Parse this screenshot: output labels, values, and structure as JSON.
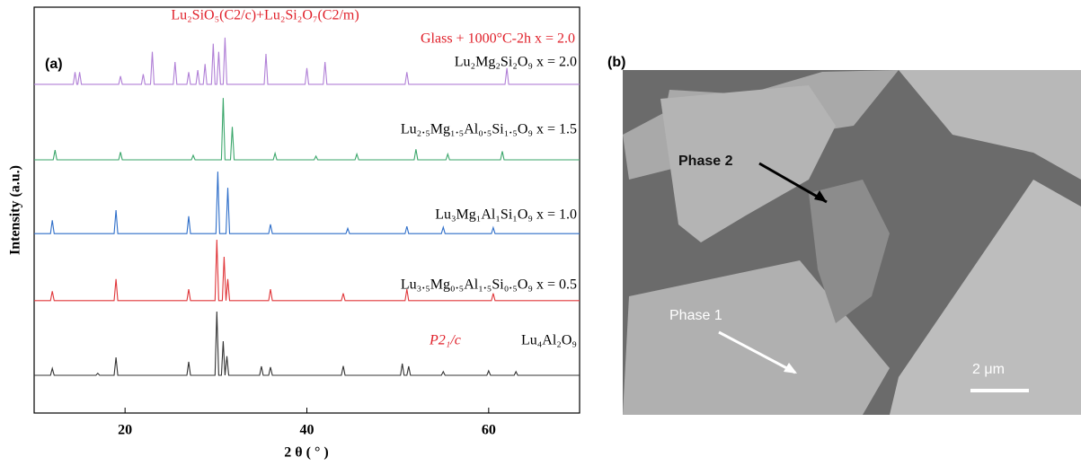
{
  "chart_data": {
    "type": "line",
    "panel_label": "(a)",
    "xlabel": "2 θ ( ° )",
    "ylabel": "Intensity (a.u.)",
    "annotations": [
      "Lu₂SiO₅(C2/c)+Lu₂Si₂O₇(C2/m)",
      "Glass + 1000°C-2h  x = 2.0",
      "P2₁/c"
    ],
    "xlim": [
      10,
      70
    ],
    "xticks": [
      20,
      40,
      60
    ],
    "ylim": [
      0,
      100
    ],
    "series": [
      {
        "name": "Lu₂Mg₂Si₂O₉  x = 2.0",
        "color": "#b07fd6",
        "x": [
          10,
          14.3,
          14.5,
          14.7,
          14.8,
          15,
          15.2,
          19.3,
          19.5,
          19.7,
          21.8,
          22,
          22.2,
          22.8,
          23,
          23.2,
          25.3,
          25.5,
          25.7,
          26.8,
          27,
          27.2,
          27.8,
          28,
          28.2,
          28.6,
          28.8,
          29.0,
          29.5,
          29.7,
          29.9,
          30.1,
          30.3,
          30.5,
          30.8,
          31,
          31.2,
          35.3,
          35.5,
          35.7,
          39.8,
          40,
          40.2,
          41.8,
          42,
          42.2,
          50.8,
          51,
          51.2,
          61.8,
          62,
          62.2,
          70
        ],
        "values": [
          81,
          81,
          84,
          81,
          81,
          84,
          81,
          81,
          83,
          81,
          81,
          83.5,
          81,
          81,
          89,
          81,
          81,
          86.5,
          81,
          81,
          84,
          81,
          81,
          84.5,
          81,
          81,
          86,
          81,
          81,
          91,
          81,
          81,
          89,
          81,
          81,
          92.5,
          81,
          81,
          88.5,
          81,
          81,
          85,
          81,
          81,
          86.5,
          81,
          81,
          84,
          81,
          81,
          85,
          81,
          81
        ]
      },
      {
        "name": "Lu₂.₅Mg₁.₅Al₀.₅Si₁.₅O₉  x = 1.5",
        "color": "#3aa66a",
        "x": [
          10,
          12.1,
          12.3,
          12.5,
          19.3,
          19.5,
          19.7,
          27.3,
          27.5,
          27.7,
          30.6,
          30.8,
          31.0,
          31.6,
          31.8,
          32.0,
          36.3,
          36.5,
          36.7,
          40.8,
          41,
          41.2,
          45.3,
          45.5,
          45.7,
          51.8,
          52,
          52.2,
          55.3,
          55.5,
          55.7,
          61.3,
          61.5,
          61.7,
          70
        ],
        "values": [
          62.4,
          62.4,
          64.8,
          62.4,
          62.4,
          64.3,
          62.4,
          62.4,
          63.5,
          62.4,
          62.4,
          77.6,
          62.4,
          62.4,
          70.5,
          62.4,
          62.4,
          64,
          62.4,
          62.4,
          63.3,
          62.4,
          62.4,
          63.8,
          62.4,
          62.4,
          65,
          62.4,
          62.4,
          63.8,
          62.4,
          62.4,
          64.5,
          62.4,
          62.4
        ]
      },
      {
        "name": "Lu₃Mg₁Al₁Si₁O₉  x = 1.0",
        "color": "#2e6ec9",
        "x": [
          10,
          11.8,
          12,
          12.2,
          18.8,
          19,
          19.2,
          26.8,
          27,
          27.2,
          30.0,
          30.2,
          30.4,
          31.1,
          31.3,
          31.5,
          35.8,
          36,
          36.2,
          44.3,
          44.5,
          44.7,
          50.8,
          51,
          51.2,
          54.8,
          55,
          55.2,
          60.3,
          60.5,
          60.7,
          70
        ],
        "values": [
          44.2,
          44.2,
          47.5,
          44.2,
          44.2,
          50,
          44.2,
          44.2,
          48.5,
          44.2,
          44.2,
          59.5,
          44.2,
          44.2,
          55.5,
          44.2,
          44.2,
          46.5,
          44.2,
          44.2,
          45.5,
          44.2,
          44.2,
          46,
          44.2,
          44.2,
          45.8,
          44.2,
          44.2,
          45.7,
          44.2,
          44.2
        ]
      },
      {
        "name": "Lu₃.₅Mg₀.₅Al₁.₅Si₀.₅O₉  x = 0.5",
        "color": "#e0363a",
        "x": [
          10,
          11.8,
          12,
          12.2,
          18.8,
          19,
          19.2,
          26.8,
          27,
          27.2,
          29.9,
          30.1,
          30.3,
          30.7,
          30.9,
          31.1,
          31.3,
          31.5,
          35.8,
          36,
          36.2,
          43.8,
          44,
          44.2,
          50.8,
          51,
          51.2,
          60.3,
          60.5,
          60.7,
          70
        ],
        "values": [
          27.7,
          27.7,
          30,
          27.7,
          27.7,
          33,
          27.7,
          27.7,
          30.5,
          27.7,
          27.7,
          42.7,
          27.7,
          27.7,
          38.5,
          27.7,
          33,
          27.7,
          27.7,
          30.5,
          27.7,
          27.7,
          29.5,
          27.7,
          27.7,
          30.5,
          27.7,
          27.7,
          29.5,
          27.7,
          27.7
        ]
      },
      {
        "name": "Lu₄Al₂O₉",
        "color": "#333333",
        "x": [
          10,
          11.8,
          12,
          12.2,
          16.8,
          17,
          17.2,
          18.8,
          19,
          19.2,
          26.8,
          27,
          27.2,
          29.9,
          30.1,
          30.3,
          30.6,
          30.8,
          31.0,
          31.2,
          31.4,
          34.8,
          35,
          35.2,
          35.8,
          36,
          36.2,
          43.8,
          44,
          44.2,
          50.3,
          50.5,
          50.7,
          51.0,
          51.2,
          51.4,
          54.8,
          55,
          55.2,
          59.8,
          60,
          60.2,
          62.8,
          63,
          63.2,
          70
        ],
        "values": [
          9.3,
          9.3,
          11,
          9.3,
          9.3,
          9.8,
          9.3,
          9.3,
          13.7,
          9.3,
          9.3,
          12.6,
          9.3,
          9.3,
          25,
          9.3,
          9.3,
          17.7,
          9.3,
          14,
          9.3,
          9.3,
          11.5,
          9.3,
          9.3,
          11.3,
          9.3,
          9.3,
          11.6,
          9.3,
          9.3,
          12.2,
          9.3,
          9.3,
          11.5,
          9.3,
          9.3,
          10.2,
          9.3,
          9.3,
          10.4,
          9.3,
          9.3,
          10.2,
          9.3,
          9.3
        ]
      }
    ]
  },
  "image_panel": {
    "label": "(b)",
    "annotations": [
      "Phase 2",
      "Phase 1"
    ],
    "scale_bar": "2 μm"
  }
}
